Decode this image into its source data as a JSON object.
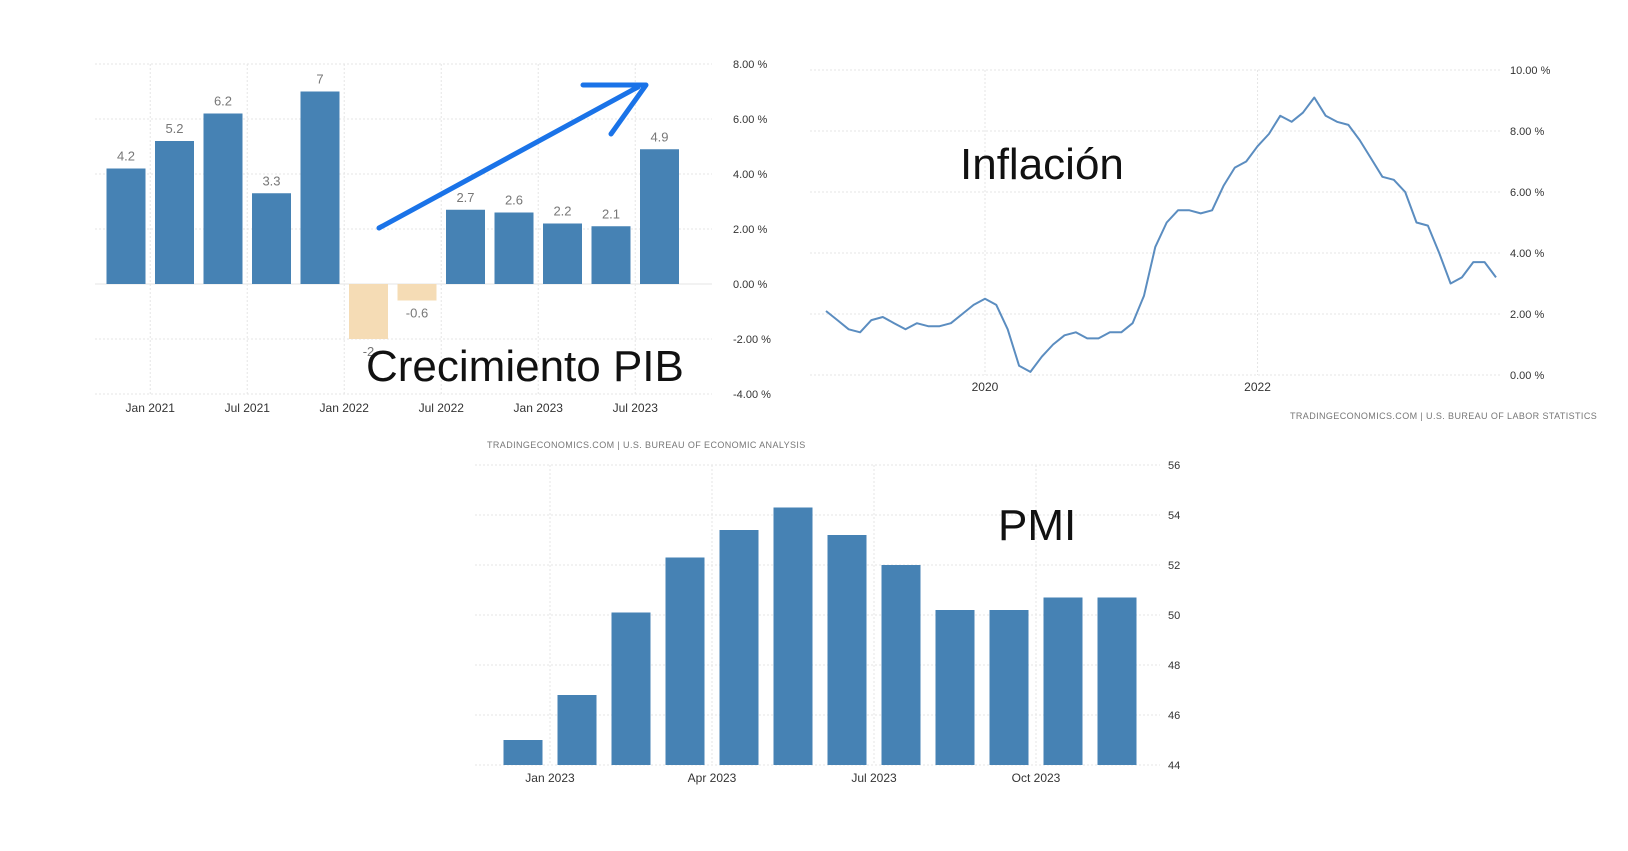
{
  "colors": {
    "bar": "#4682b4",
    "negative_bar": "#f5dcb5",
    "line": "#5b8dc0",
    "arrow": "#1a73e8",
    "grid": "#e6e6e6"
  },
  "chart_data": [
    {
      "id": "gdp",
      "type": "bar",
      "title": "Crecimiento PIB",
      "source": "TRADINGECONOMICS.COM  |  U.S. BUREAU OF ECONOMIC ANALYSIS",
      "values": [
        4.2,
        5.2,
        6.2,
        3.3,
        7,
        -2,
        -0.6,
        2.7,
        2.6,
        2.2,
        2.1,
        4.9
      ],
      "value_labels": [
        "4.2",
        "5.2",
        "6.2",
        "3.3",
        "7",
        "-2",
        "-0.6",
        "2.7",
        "2.6",
        "2.2",
        "2.1",
        "4.9"
      ],
      "x_ticks": [
        "Jan 2021",
        "Jul 2021",
        "Jan 2022",
        "Jul 2022",
        "Jan 2023",
        "Jul 2023"
      ],
      "y_ticks": [
        "8.00 %",
        "6.00 %",
        "4.00 %",
        "2.00 %",
        "0.00 %",
        "-2.00 %",
        "-4.00 %"
      ],
      "ylim": [
        -4,
        8
      ],
      "annotation": "upward-trend-arrow",
      "grid": true
    },
    {
      "id": "inflation",
      "type": "line",
      "title": "Inflación",
      "source": "TRADINGECONOMICS.COM  |  U.S. BUREAU OF LABOR STATISTICS",
      "values": [
        2.1,
        1.8,
        1.5,
        1.4,
        1.8,
        1.9,
        1.7,
        1.5,
        1.7,
        1.6,
        1.6,
        1.7,
        2.0,
        2.3,
        2.5,
        2.3,
        1.5,
        0.3,
        0.1,
        0.6,
        1.0,
        1.3,
        1.4,
        1.2,
        1.2,
        1.4,
        1.4,
        1.7,
        2.6,
        4.2,
        5.0,
        5.4,
        5.4,
        5.3,
        5.4,
        6.2,
        6.8,
        7.0,
        7.5,
        7.9,
        8.5,
        8.3,
        8.6,
        9.1,
        8.5,
        8.3,
        8.2,
        7.7,
        7.1,
        6.5,
        6.4,
        6.0,
        5.0,
        4.9,
        4.0,
        3.0,
        3.2,
        3.7,
        3.7,
        3.2
      ],
      "x_ticks": [
        "2020",
        "2022"
      ],
      "y_ticks": [
        "10.00 %",
        "8.00 %",
        "6.00 %",
        "4.00 %",
        "2.00 %",
        "0.00 %"
      ],
      "ylim": [
        0,
        10
      ],
      "grid": true
    },
    {
      "id": "pmi",
      "type": "bar",
      "title": "PMI",
      "values": [
        45.0,
        46.8,
        50.1,
        52.3,
        53.4,
        54.3,
        53.2,
        52.0,
        50.2,
        50.2,
        50.7,
        50.7
      ],
      "x_ticks": [
        "Jan 2023",
        "Apr 2023",
        "Jul 2023",
        "Oct 2023"
      ],
      "y_ticks": [
        "56",
        "54",
        "52",
        "50",
        "48",
        "46",
        "44"
      ],
      "ylim": [
        44,
        56
      ],
      "grid": true
    }
  ]
}
